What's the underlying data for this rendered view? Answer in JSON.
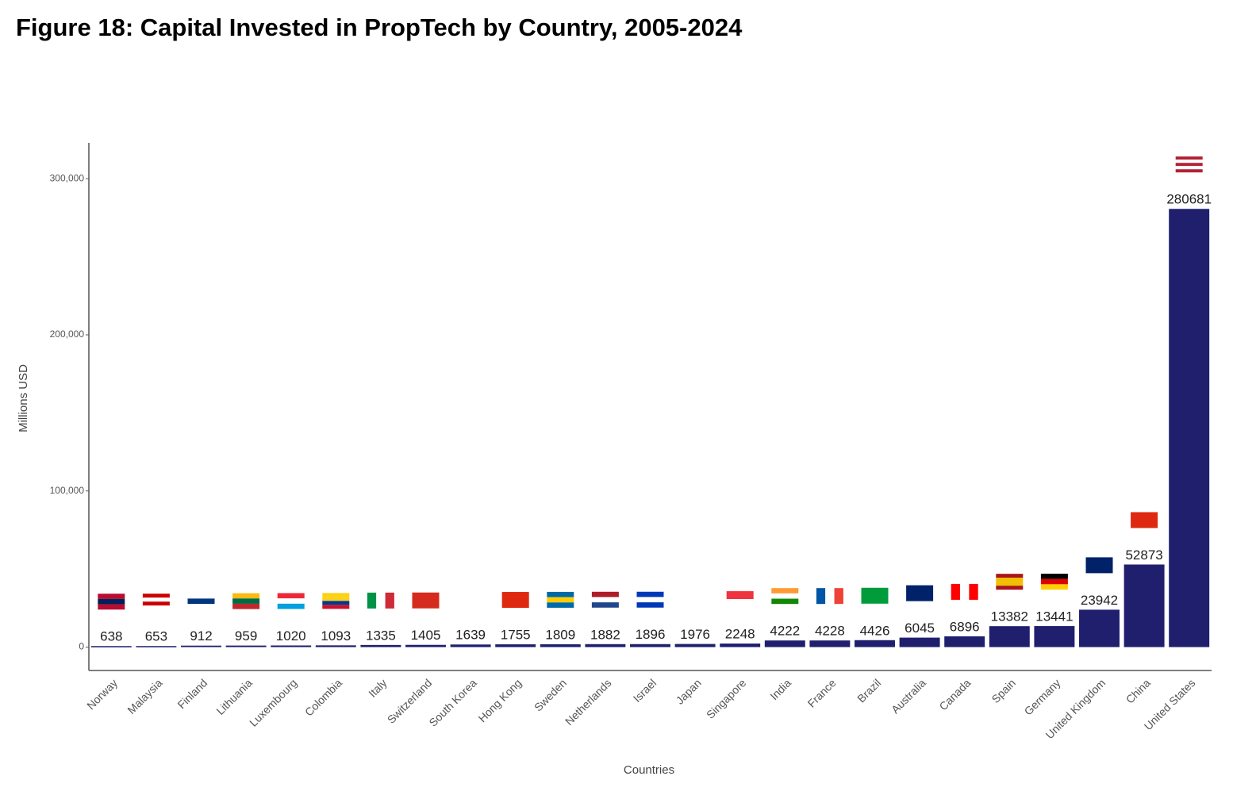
{
  "chart_data": {
    "type": "bar",
    "title": "Figure 18: Capital Invested in PropTech by Country, 2005-2024",
    "x_label": "Countries",
    "y_label": "Millions USD",
    "categories": [
      "Norway",
      "Malaysia",
      "Finland",
      "Lithuania",
      "Luxembourg",
      "Colombia",
      "Italy",
      "Switzerland",
      "South Korea",
      "Hong Kong",
      "Sweden",
      "Netherlands",
      "Israel",
      "Japan",
      "Singapore",
      "India",
      "France",
      "Brazil",
      "Australia",
      "Canada",
      "Spain",
      "Germany",
      "United Kingdom",
      "China",
      "United States"
    ],
    "values": [
      638,
      653,
      912,
      959,
      1020,
      1093,
      1335,
      1405,
      1639,
      1755,
      1809,
      1882,
      1896,
      1976,
      2248,
      4222,
      4228,
      4426,
      6045,
      6896,
      13382,
      13441,
      23942,
      52873,
      280681
    ],
    "color": "#1f1f6e",
    "ylim": [
      -15000,
      323000
    ],
    "yticks": [
      0,
      {
        "value": 100000,
        "label": "100,000"
      },
      {
        "value": 200000,
        "label": "200,000"
      },
      {
        "value": 300000,
        "label": "300,000"
      }
    ],
    "grid": false
  }
}
